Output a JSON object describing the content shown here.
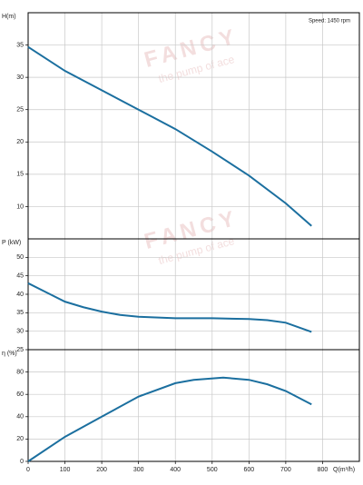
{
  "chart_data": [
    {
      "type": "line",
      "ylabel": "H(m)",
      "annotation": "Speed: 1450 rpm",
      "ylim": [
        5,
        40
      ],
      "yticks": [
        10,
        15,
        20,
        25,
        30,
        35
      ],
      "grid": true,
      "x": [
        0,
        100,
        200,
        300,
        400,
        500,
        600,
        700,
        770
      ],
      "series": [
        {
          "color": "#1b6f9f",
          "values": [
            34.7,
            31,
            28,
            25,
            22,
            18.5,
            14.8,
            10.5,
            7
          ]
        }
      ]
    },
    {
      "type": "line",
      "ylabel": "P (kW)",
      "ylim": [
        25,
        55
      ],
      "yticks": [
        25,
        30,
        35,
        40,
        45,
        50
      ],
      "grid": true,
      "x": [
        0,
        50,
        100,
        150,
        200,
        250,
        300,
        400,
        500,
        600,
        650,
        700,
        770
      ],
      "series": [
        {
          "color": "#1b6f9f",
          "values": [
            43,
            40.5,
            38,
            36.5,
            35.3,
            34.4,
            33.9,
            33.5,
            33.5,
            33.3,
            33,
            32.3,
            29.8
          ]
        }
      ]
    },
    {
      "type": "line",
      "ylabel": "η (%)",
      "xlabel": "Q(m³/h)",
      "xlim": [
        0,
        900
      ],
      "xticks": [
        0,
        100,
        200,
        300,
        400,
        500,
        600,
        700,
        800
      ],
      "ylim": [
        0,
        100
      ],
      "yticks": [
        0,
        20,
        40,
        60,
        80
      ],
      "grid": true,
      "x": [
        0,
        100,
        200,
        300,
        400,
        450,
        530,
        600,
        650,
        700,
        770
      ],
      "series": [
        {
          "color": "#1b6f9f",
          "values": [
            0,
            22,
            40,
            58,
            70,
            73,
            75,
            73,
            69,
            63,
            51
          ]
        }
      ]
    }
  ],
  "watermark": {
    "brand": "FANCY",
    "slogan": "the pump of ace"
  }
}
